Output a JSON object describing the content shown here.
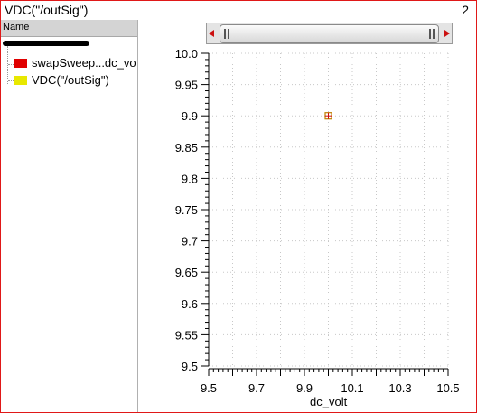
{
  "window": {
    "title": "VDC(\"/outSig\")",
    "subwindow_number": "2"
  },
  "browser": {
    "header": "Name",
    "items": [
      {
        "label": "swapSweep...dc_vo",
        "color": "#e00000"
      },
      {
        "label": "VDC(\"/outSig\")",
        "color": "#e8e800"
      }
    ]
  },
  "chart_data": {
    "type": "scatter",
    "xlabel": "dc_volt",
    "ylabel": "",
    "xlim": [
      9.5,
      10.5
    ],
    "ylim": [
      9.5,
      10.0
    ],
    "xticks": [
      "9.5",
      "9.7",
      "9.9",
      "10.1",
      "10.3",
      "10.5"
    ],
    "yticks": [
      "10.0",
      "9.95",
      "9.9",
      "9.85",
      "9.8",
      "9.75",
      "9.7",
      "9.65",
      "9.6",
      "9.55",
      "9.5"
    ],
    "grid": true,
    "series": [
      {
        "x": [
          10.0
        ],
        "y": [
          9.9
        ],
        "color": "#c08000"
      }
    ]
  }
}
